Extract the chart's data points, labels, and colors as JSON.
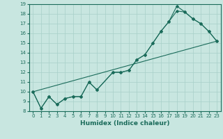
{
  "title": "",
  "xlabel": "Humidex (Indice chaleur)",
  "bg_color": "#c8e6e0",
  "grid_color": "#a8d0c8",
  "line_color": "#1a6b5a",
  "xlim": [
    -0.5,
    23.5
  ],
  "ylim": [
    8,
    19
  ],
  "xticks": [
    0,
    1,
    2,
    3,
    4,
    5,
    6,
    7,
    8,
    9,
    10,
    11,
    12,
    13,
    14,
    15,
    16,
    17,
    18,
    19,
    20,
    21,
    22,
    23
  ],
  "yticks": [
    8,
    9,
    10,
    11,
    12,
    13,
    14,
    15,
    16,
    17,
    18,
    19
  ],
  "series": [
    {
      "x": [
        0,
        1,
        2,
        3,
        4,
        5,
        6,
        7,
        8,
        10,
        11,
        12,
        13,
        14,
        15,
        16,
        17,
        18,
        19,
        20,
        21,
        22,
        23
      ],
      "y": [
        10,
        8.3,
        9.5,
        8.7,
        9.3,
        9.5,
        9.5,
        11.0,
        10.2,
        12.0,
        12.0,
        12.2,
        13.3,
        13.8,
        15.0,
        16.2,
        17.2,
        18.3,
        18.2,
        17.5,
        17.0,
        16.2,
        15.2
      ],
      "marker": true
    },
    {
      "x": [
        0,
        1,
        2,
        3,
        4,
        5,
        6,
        7,
        8,
        10,
        11,
        12,
        13,
        14,
        15,
        16,
        17,
        18,
        19,
        20,
        21,
        22,
        23
      ],
      "y": [
        10,
        8.3,
        9.5,
        8.7,
        9.3,
        9.5,
        9.5,
        11.0,
        10.2,
        12.0,
        12.0,
        12.2,
        13.3,
        13.8,
        15.0,
        16.2,
        17.2,
        18.8,
        18.2,
        17.5,
        17.0,
        16.2,
        15.2
      ],
      "marker": true
    },
    {
      "x": [
        0,
        23
      ],
      "y": [
        10,
        15.2
      ],
      "marker": false
    }
  ],
  "tick_fontsize": 5,
  "xlabel_fontsize": 6.5
}
